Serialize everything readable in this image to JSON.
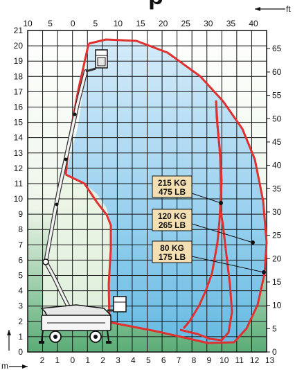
{
  "header": {
    "partial_title": "p"
  },
  "axes": {
    "x_bottom_unit": "m",
    "x_top_unit": "ft",
    "x_bottom_ticks": [
      "2",
      "1",
      "0",
      "1",
      "2",
      "3",
      "4",
      "5",
      "6",
      "7",
      "8",
      "9",
      "10",
      "11",
      "12",
      "13"
    ],
    "x_top_ticks": [
      "10",
      "5",
      "0",
      "5",
      "10",
      "15",
      "20",
      "25",
      "30",
      "35",
      "40"
    ],
    "y_left_ticks": [
      "0",
      "1",
      "2",
      "3",
      "4",
      "5",
      "6",
      "7",
      "8",
      "9",
      "10",
      "11",
      "12",
      "13",
      "14",
      "15",
      "16",
      "17",
      "18",
      "19",
      "20",
      "21"
    ],
    "y_right_ticks": [
      "0",
      "5",
      "10",
      "15",
      "20",
      "25",
      "30",
      "35",
      "40",
      "45",
      "50",
      "55",
      "60",
      "65"
    ]
  },
  "load_zones": [
    {
      "id": "inner",
      "kg": "215 KG",
      "lb": "475 LB"
    },
    {
      "id": "middle",
      "kg": "120 KG",
      "lb": "265 LB"
    },
    {
      "id": "outer",
      "kg": "80 KG",
      "lb": "175 LB"
    }
  ],
  "colors": {
    "envelope": "#e03030",
    "sky_top": "#cfe7f8",
    "sky_bottom": "#5fb6e6",
    "ground_top": "#f1f7ee",
    "ground_bottom": "#56a873",
    "label_bg": "#f4dfb3",
    "grid": "#111111"
  }
}
